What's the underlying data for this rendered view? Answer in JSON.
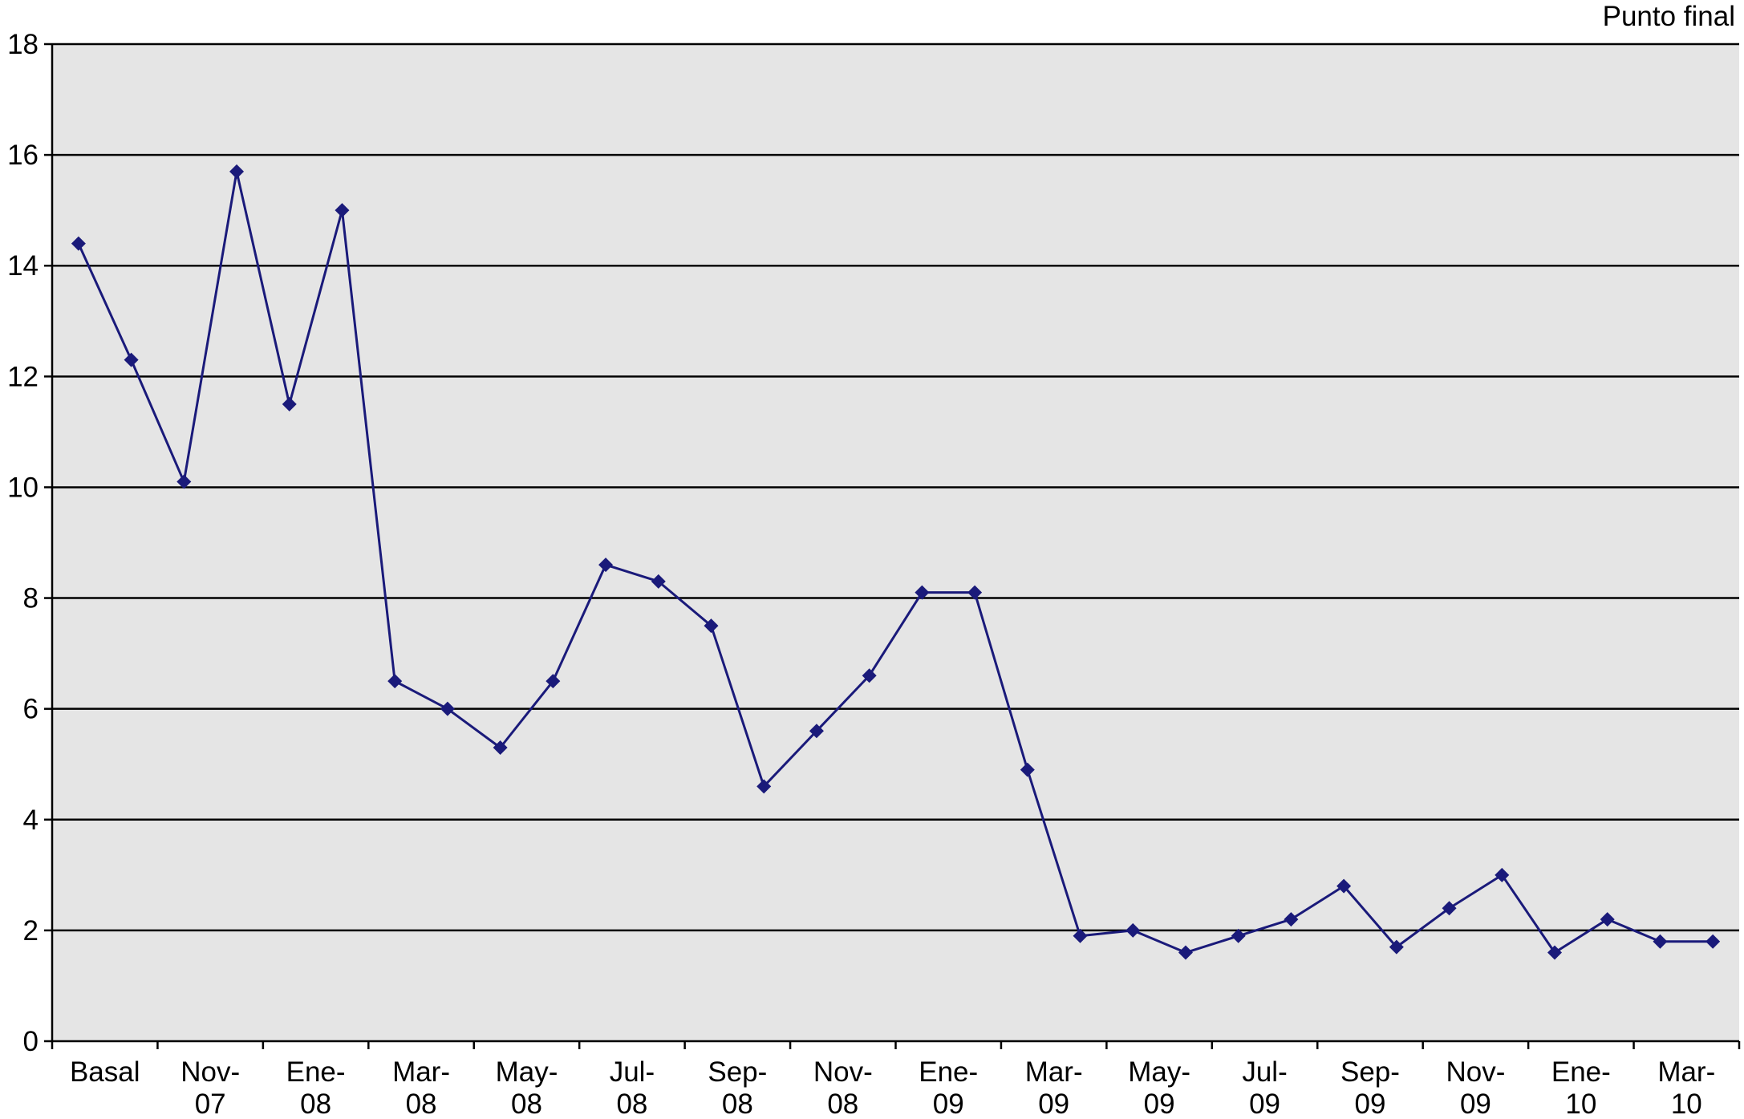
{
  "chart_data": {
    "type": "line",
    "title": "",
    "xlabel": "",
    "ylabel": "",
    "corner_label": "Punto final",
    "ylim": [
      0,
      18
    ],
    "y_ticks": [
      0,
      2,
      4,
      6,
      8,
      10,
      12,
      14,
      16,
      18
    ],
    "grid": "horizontal",
    "legend": "none",
    "colors": {
      "plot_background": "#e5e5e5",
      "line": "#1a1a7a",
      "marker": "#1a1a7a",
      "gridline": "#000000"
    },
    "x_labels": [
      {
        "line1": "Basal",
        "line2": ""
      },
      {
        "line1": "Nov-",
        "line2": "07"
      },
      {
        "line1": "Ene-",
        "line2": "08"
      },
      {
        "line1": "Mar-",
        "line2": "08"
      },
      {
        "line1": "May-",
        "line2": "08"
      },
      {
        "line1": "Jul-",
        "line2": "08"
      },
      {
        "line1": "Sep-",
        "line2": "08"
      },
      {
        "line1": "Nov-",
        "line2": "08"
      },
      {
        "line1": "Ene-",
        "line2": "09"
      },
      {
        "line1": "Mar-",
        "line2": "09"
      },
      {
        "line1": "May-",
        "line2": "09"
      },
      {
        "line1": "Jul-",
        "line2": "09"
      },
      {
        "line1": "Sep-",
        "line2": "09"
      },
      {
        "line1": "Nov-",
        "line2": "09"
      },
      {
        "line1": "Ene-",
        "line2": "10"
      },
      {
        "line1": "Mar-",
        "line2": "10"
      }
    ],
    "series": [
      {
        "values": [
          14.4,
          12.3,
          10.1,
          15.7,
          11.5,
          15.0,
          6.5,
          6.0,
          5.3,
          6.5,
          8.6,
          8.3,
          7.5,
          4.6,
          5.6,
          6.6,
          8.1,
          8.1,
          4.9,
          1.9,
          2.0,
          1.6,
          1.9,
          2.2,
          2.8,
          1.7,
          2.4,
          3.0,
          1.6,
          2.2,
          1.8,
          1.8
        ]
      }
    ]
  }
}
